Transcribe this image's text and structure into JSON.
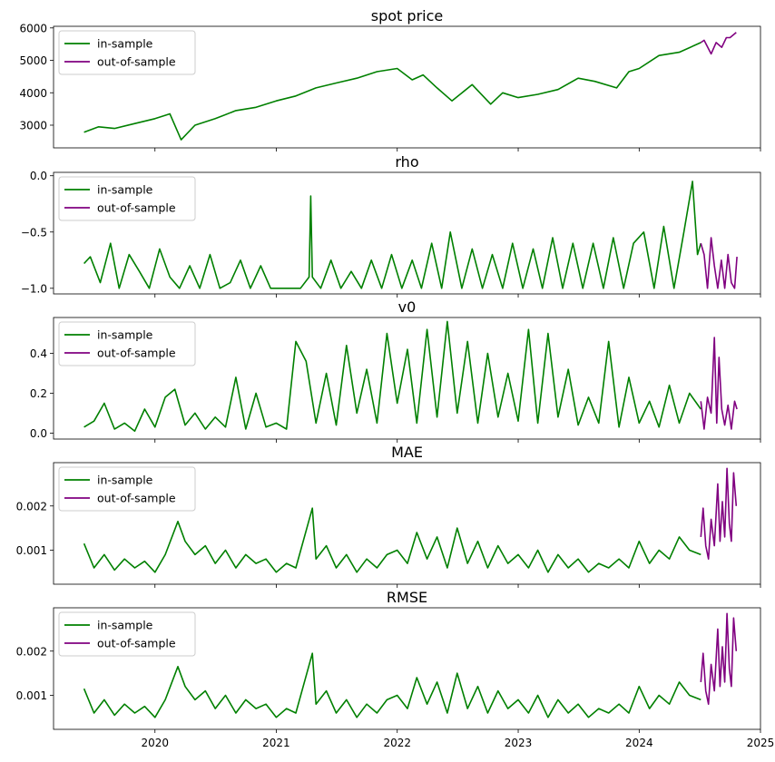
{
  "colors": {
    "in_sample": "#008000",
    "out_of_sample": "#800080",
    "axes": "#000000",
    "background": "#ffffff"
  },
  "legend": {
    "in_sample_label": "in-sample",
    "out_of_sample_label": "out-of-sample",
    "placement": "upper-left"
  },
  "chart_data": [
    {
      "type": "line",
      "title": "spot price",
      "xlim": [
        "2019-03-01",
        "2025-01-01"
      ],
      "ylim": [
        2300,
        6050
      ],
      "yticks": [
        3000,
        4000,
        5000,
        6000
      ],
      "ytick_labels": [
        "3000",
        "4000",
        "5000",
        "6000"
      ],
      "show_xtick_labels": false,
      "grid": false,
      "legend": "upper-left",
      "series": [
        {
          "name": "in-sample",
          "color": "#008000",
          "x": [
            "2019-06-01",
            "2019-07-15",
            "2019-09-01",
            "2019-11-01",
            "2020-01-01",
            "2020-02-15",
            "2020-03-20",
            "2020-05-01",
            "2020-07-01",
            "2020-09-01",
            "2020-11-01",
            "2021-01-01",
            "2021-03-01",
            "2021-05-01",
            "2021-07-01",
            "2021-09-01",
            "2021-11-01",
            "2022-01-01",
            "2022-02-15",
            "2022-03-20",
            "2022-05-01",
            "2022-06-15",
            "2022-08-15",
            "2022-10-10",
            "2022-11-15",
            "2023-01-01",
            "2023-03-01",
            "2023-05-01",
            "2023-07-01",
            "2023-08-20",
            "2023-10-25",
            "2023-12-01",
            "2024-01-01",
            "2024-03-01",
            "2024-05-01",
            "2024-07-05"
          ],
          "y": [
            2780,
            2950,
            2900,
            3050,
            3200,
            3350,
            2550,
            3000,
            3200,
            3450,
            3550,
            3750,
            3900,
            4150,
            4300,
            4450,
            4650,
            4750,
            4400,
            4550,
            4150,
            3750,
            4250,
            3650,
            4000,
            3850,
            3950,
            4100,
            4450,
            4350,
            4150,
            4650,
            4750,
            5150,
            5250,
            5550
          ]
        },
        {
          "name": "out-of-sample",
          "color": "#800080",
          "x": [
            "2024-07-05",
            "2024-07-15",
            "2024-08-05",
            "2024-08-20",
            "2024-09-06",
            "2024-09-20",
            "2024-10-01",
            "2024-10-20"
          ],
          "y": [
            5550,
            5620,
            5200,
            5550,
            5400,
            5700,
            5700,
            5860
          ]
        }
      ]
    },
    {
      "type": "line",
      "title": "rho",
      "xlim": [
        "2019-03-01",
        "2025-01-01"
      ],
      "ylim": [
        -1.05,
        0.03
      ],
      "yticks": [
        -1.0,
        -0.5,
        0.0
      ],
      "ytick_labels": [
        "−1.0",
        "−0.5",
        "0.0"
      ],
      "show_xtick_labels": false,
      "grid": false,
      "legend": "upper-left",
      "series": [
        {
          "name": "in-sample",
          "color": "#008000",
          "x": [
            "2019-06-01",
            "2019-06-20",
            "2019-07-20",
            "2019-08-20",
            "2019-09-15",
            "2019-10-15",
            "2019-11-15",
            "2019-12-15",
            "2020-01-15",
            "2020-02-15",
            "2020-03-15",
            "2020-04-15",
            "2020-05-15",
            "2020-06-15",
            "2020-07-15",
            "2020-08-15",
            "2020-09-15",
            "2020-10-15",
            "2020-11-15",
            "2020-12-15",
            "2021-01-15",
            "2021-02-15",
            "2021-03-15",
            "2021-04-10",
            "2021-04-15",
            "2021-04-20",
            "2021-05-15",
            "2021-06-15",
            "2021-07-15",
            "2021-08-15",
            "2021-09-15",
            "2021-10-15",
            "2021-11-15",
            "2021-12-15",
            "2022-01-15",
            "2022-02-15",
            "2022-03-15",
            "2022-04-15",
            "2022-05-15",
            "2022-06-10",
            "2022-07-15",
            "2022-08-15",
            "2022-09-15",
            "2022-10-15",
            "2022-11-15",
            "2022-12-15",
            "2023-01-15",
            "2023-02-15",
            "2023-03-15",
            "2023-04-15",
            "2023-05-15",
            "2023-06-15",
            "2023-07-15",
            "2023-08-15",
            "2023-09-15",
            "2023-10-15",
            "2023-11-15",
            "2023-12-15",
            "2024-01-15",
            "2024-02-15",
            "2024-03-15",
            "2024-04-15",
            "2024-05-15",
            "2024-06-10",
            "2024-06-25",
            "2024-07-05"
          ],
          "y": [
            -0.78,
            -0.72,
            -0.95,
            -0.6,
            -1.0,
            -0.7,
            -0.85,
            -1.0,
            -0.65,
            -0.9,
            -1.0,
            -0.8,
            -1.0,
            -0.7,
            -1.0,
            -0.95,
            -0.75,
            -1.0,
            -0.8,
            -1.0,
            -1.0,
            -1.0,
            -1.0,
            -0.9,
            -0.18,
            -0.9,
            -1.0,
            -0.75,
            -1.0,
            -0.85,
            -1.0,
            -0.75,
            -1.0,
            -0.7,
            -1.0,
            -0.75,
            -1.0,
            -0.6,
            -1.0,
            -0.5,
            -1.0,
            -0.65,
            -1.0,
            -0.7,
            -1.0,
            -0.6,
            -1.0,
            -0.65,
            -1.0,
            -0.55,
            -1.0,
            -0.6,
            -1.0,
            -0.6,
            -1.0,
            -0.55,
            -1.0,
            -0.6,
            -0.5,
            -1.0,
            -0.45,
            -1.0,
            -0.5,
            -0.05,
            -0.7,
            -0.6
          ]
        },
        {
          "name": "out-of-sample",
          "color": "#800080",
          "x": [
            "2024-07-05",
            "2024-07-15",
            "2024-07-25",
            "2024-08-05",
            "2024-08-15",
            "2024-08-25",
            "2024-09-05",
            "2024-09-15",
            "2024-09-25",
            "2024-10-05",
            "2024-10-15",
            "2024-10-22"
          ],
          "y": [
            -0.6,
            -0.7,
            -1.0,
            -0.55,
            -0.8,
            -1.0,
            -0.75,
            -1.0,
            -0.7,
            -0.95,
            -1.0,
            -0.72
          ]
        }
      ]
    },
    {
      "type": "line",
      "title": "v0",
      "xlim": [
        "2019-03-01",
        "2025-01-01"
      ],
      "ylim": [
        -0.03,
        0.58
      ],
      "yticks": [
        0.0,
        0.2,
        0.4
      ],
      "ytick_labels": [
        "0.0",
        "0.2",
        "0.4"
      ],
      "show_xtick_labels": false,
      "grid": false,
      "legend": "upper-left",
      "series": [
        {
          "name": "in-sample",
          "color": "#008000",
          "x": [
            "2019-06-01",
            "2019-07-01",
            "2019-08-01",
            "2019-09-01",
            "2019-10-01",
            "2019-11-01",
            "2019-12-01",
            "2020-01-01",
            "2020-02-01",
            "2020-03-01",
            "2020-04-01",
            "2020-05-01",
            "2020-06-01",
            "2020-07-01",
            "2020-08-01",
            "2020-09-01",
            "2020-10-01",
            "2020-11-01",
            "2020-12-01",
            "2021-01-01",
            "2021-02-01",
            "2021-03-01",
            "2021-04-01",
            "2021-05-01",
            "2021-06-01",
            "2021-07-01",
            "2021-08-01",
            "2021-09-01",
            "2021-10-01",
            "2021-11-01",
            "2021-12-01",
            "2022-01-01",
            "2022-02-01",
            "2022-03-01",
            "2022-04-01",
            "2022-05-01",
            "2022-06-01",
            "2022-07-01",
            "2022-08-01",
            "2022-09-01",
            "2022-10-01",
            "2022-11-01",
            "2022-12-01",
            "2023-01-01",
            "2023-02-01",
            "2023-03-01",
            "2023-04-01",
            "2023-05-01",
            "2023-06-01",
            "2023-07-01",
            "2023-08-01",
            "2023-09-01",
            "2023-10-01",
            "2023-11-01",
            "2023-12-01",
            "2024-01-01",
            "2024-02-01",
            "2024-03-01",
            "2024-04-01",
            "2024-05-01",
            "2024-06-01",
            "2024-07-05"
          ],
          "y": [
            0.03,
            0.06,
            0.15,
            0.02,
            0.05,
            0.01,
            0.12,
            0.03,
            0.18,
            0.22,
            0.04,
            0.1,
            0.02,
            0.08,
            0.03,
            0.28,
            0.02,
            0.2,
            0.03,
            0.05,
            0.02,
            0.46,
            0.36,
            0.05,
            0.3,
            0.04,
            0.44,
            0.1,
            0.32,
            0.05,
            0.5,
            0.15,
            0.42,
            0.05,
            0.52,
            0.08,
            0.56,
            0.1,
            0.46,
            0.05,
            0.4,
            0.08,
            0.3,
            0.06,
            0.52,
            0.05,
            0.5,
            0.08,
            0.32,
            0.04,
            0.18,
            0.05,
            0.46,
            0.03,
            0.28,
            0.05,
            0.16,
            0.03,
            0.24,
            0.05,
            0.2,
            0.12
          ]
        },
        {
          "name": "out-of-sample",
          "color": "#800080",
          "x": [
            "2024-07-05",
            "2024-07-15",
            "2024-07-25",
            "2024-08-05",
            "2024-08-15",
            "2024-08-22",
            "2024-08-29",
            "2024-09-06",
            "2024-09-15",
            "2024-09-25",
            "2024-10-05",
            "2024-10-15",
            "2024-10-22"
          ],
          "y": [
            0.16,
            0.02,
            0.18,
            0.1,
            0.48,
            0.05,
            0.38,
            0.12,
            0.04,
            0.14,
            0.02,
            0.16,
            0.12
          ]
        }
      ]
    },
    {
      "type": "line",
      "title": "MAE",
      "xlim": [
        "2019-03-01",
        "2025-01-01"
      ],
      "ylim": [
        0.00023,
        0.00298
      ],
      "yticks": [
        0.001,
        0.002
      ],
      "ytick_labels": [
        "0.001",
        "0.002"
      ],
      "show_xtick_labels": false,
      "grid": false,
      "legend": "upper-left",
      "series": [
        {
          "name": "in-sample",
          "color": "#008000",
          "x": [
            "2019-06-01",
            "2019-07-01",
            "2019-08-01",
            "2019-09-01",
            "2019-10-01",
            "2019-11-01",
            "2019-12-01",
            "2020-01-01",
            "2020-02-01",
            "2020-03-10",
            "2020-04-01",
            "2020-05-01",
            "2020-06-01",
            "2020-07-01",
            "2020-08-01",
            "2020-09-01",
            "2020-10-01",
            "2020-11-01",
            "2020-12-01",
            "2021-01-01",
            "2021-02-01",
            "2021-03-01",
            "2021-04-20",
            "2021-05-01",
            "2021-06-01",
            "2021-07-01",
            "2021-08-01",
            "2021-09-01",
            "2021-10-01",
            "2021-11-01",
            "2021-12-01",
            "2022-01-01",
            "2022-02-01",
            "2022-03-01",
            "2022-04-01",
            "2022-05-01",
            "2022-06-01",
            "2022-07-01",
            "2022-08-01",
            "2022-09-01",
            "2022-10-01",
            "2022-11-01",
            "2022-12-01",
            "2023-01-01",
            "2023-02-01",
            "2023-03-01",
            "2023-04-01",
            "2023-05-01",
            "2023-06-01",
            "2023-07-01",
            "2023-08-01",
            "2023-09-01",
            "2023-10-01",
            "2023-11-01",
            "2023-12-01",
            "2024-01-01",
            "2024-02-01",
            "2024-03-01",
            "2024-04-01",
            "2024-05-01",
            "2024-06-01",
            "2024-07-05"
          ],
          "y": [
            0.00115,
            0.0006,
            0.0009,
            0.00055,
            0.0008,
            0.0006,
            0.00075,
            0.0005,
            0.0009,
            0.00165,
            0.0012,
            0.0009,
            0.0011,
            0.0007,
            0.001,
            0.0006,
            0.0009,
            0.0007,
            0.0008,
            0.0005,
            0.0007,
            0.0006,
            0.00195,
            0.0008,
            0.0011,
            0.0006,
            0.0009,
            0.0005,
            0.0008,
            0.0006,
            0.0009,
            0.001,
            0.0007,
            0.0014,
            0.0008,
            0.0013,
            0.0006,
            0.0015,
            0.0007,
            0.0012,
            0.0006,
            0.0011,
            0.0007,
            0.0009,
            0.0006,
            0.001,
            0.0005,
            0.0009,
            0.0006,
            0.0008,
            0.0005,
            0.0007,
            0.0006,
            0.0008,
            0.0006,
            0.0012,
            0.0007,
            0.001,
            0.0008,
            0.0013,
            0.001,
            0.0009
          ]
        },
        {
          "name": "out-of-sample",
          "color": "#800080",
          "x": [
            "2024-07-05",
            "2024-07-12",
            "2024-07-20",
            "2024-07-28",
            "2024-08-05",
            "2024-08-15",
            "2024-08-25",
            "2024-09-01",
            "2024-09-08",
            "2024-09-15",
            "2024-09-22",
            "2024-09-29",
            "2024-10-05",
            "2024-10-12",
            "2024-10-20"
          ],
          "y": [
            0.0013,
            0.00195,
            0.0011,
            0.0008,
            0.0017,
            0.0011,
            0.0025,
            0.0012,
            0.0021,
            0.0013,
            0.00285,
            0.0016,
            0.0012,
            0.00275,
            0.002
          ]
        }
      ]
    },
    {
      "type": "line",
      "title": "RMSE",
      "xlim": [
        "2019-03-01",
        "2025-01-01"
      ],
      "ylim": [
        0.00023,
        0.00298
      ],
      "yticks": [
        0.001,
        0.002
      ],
      "ytick_labels": [
        "0.001",
        "0.002"
      ],
      "show_xtick_labels": true,
      "xticks": [
        "2020-01-01",
        "2021-01-01",
        "2022-01-01",
        "2023-01-01",
        "2024-01-01",
        "2025-01-01"
      ],
      "xtick_labels": [
        "2020",
        "2021",
        "2022",
        "2023",
        "2024",
        "2025"
      ],
      "grid": false,
      "legend": "upper-left",
      "series": [
        {
          "name": "in-sample",
          "color": "#008000",
          "x": [
            "2019-06-01",
            "2019-07-01",
            "2019-08-01",
            "2019-09-01",
            "2019-10-01",
            "2019-11-01",
            "2019-12-01",
            "2020-01-01",
            "2020-02-01",
            "2020-03-10",
            "2020-04-01",
            "2020-05-01",
            "2020-06-01",
            "2020-07-01",
            "2020-08-01",
            "2020-09-01",
            "2020-10-01",
            "2020-11-01",
            "2020-12-01",
            "2021-01-01",
            "2021-02-01",
            "2021-03-01",
            "2021-04-20",
            "2021-05-01",
            "2021-06-01",
            "2021-07-01",
            "2021-08-01",
            "2021-09-01",
            "2021-10-01",
            "2021-11-01",
            "2021-12-01",
            "2022-01-01",
            "2022-02-01",
            "2022-03-01",
            "2022-04-01",
            "2022-05-01",
            "2022-06-01",
            "2022-07-01",
            "2022-08-01",
            "2022-09-01",
            "2022-10-01",
            "2022-11-01",
            "2022-12-01",
            "2023-01-01",
            "2023-02-01",
            "2023-03-01",
            "2023-04-01",
            "2023-05-01",
            "2023-06-01",
            "2023-07-01",
            "2023-08-01",
            "2023-09-01",
            "2023-10-01",
            "2023-11-01",
            "2023-12-01",
            "2024-01-01",
            "2024-02-01",
            "2024-03-01",
            "2024-04-01",
            "2024-05-01",
            "2024-06-01",
            "2024-07-05"
          ],
          "y": [
            0.00115,
            0.0006,
            0.0009,
            0.00055,
            0.0008,
            0.0006,
            0.00075,
            0.0005,
            0.0009,
            0.00165,
            0.0012,
            0.0009,
            0.0011,
            0.0007,
            0.001,
            0.0006,
            0.0009,
            0.0007,
            0.0008,
            0.0005,
            0.0007,
            0.0006,
            0.00195,
            0.0008,
            0.0011,
            0.0006,
            0.0009,
            0.0005,
            0.0008,
            0.0006,
            0.0009,
            0.001,
            0.0007,
            0.0014,
            0.0008,
            0.0013,
            0.0006,
            0.0015,
            0.0007,
            0.0012,
            0.0006,
            0.0011,
            0.0007,
            0.0009,
            0.0006,
            0.001,
            0.0005,
            0.0009,
            0.0006,
            0.0008,
            0.0005,
            0.0007,
            0.0006,
            0.0008,
            0.0006,
            0.0012,
            0.0007,
            0.001,
            0.0008,
            0.0013,
            0.001,
            0.0009
          ]
        },
        {
          "name": "out-of-sample",
          "color": "#800080",
          "x": [
            "2024-07-05",
            "2024-07-12",
            "2024-07-20",
            "2024-07-28",
            "2024-08-05",
            "2024-08-15",
            "2024-08-25",
            "2024-09-01",
            "2024-09-08",
            "2024-09-15",
            "2024-09-22",
            "2024-09-29",
            "2024-10-05",
            "2024-10-12",
            "2024-10-20"
          ],
          "y": [
            0.0013,
            0.00195,
            0.0011,
            0.0008,
            0.0017,
            0.0011,
            0.0025,
            0.0012,
            0.0021,
            0.0013,
            0.00285,
            0.0016,
            0.0012,
            0.00275,
            0.002
          ]
        }
      ]
    }
  ]
}
